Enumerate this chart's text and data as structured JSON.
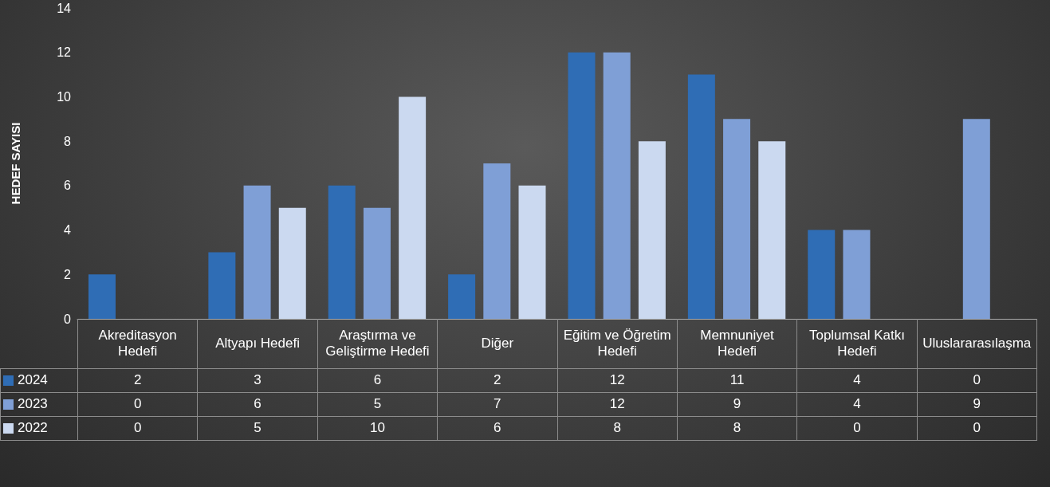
{
  "chart_data": {
    "type": "bar",
    "ylabel": "HEDEF SAYISI",
    "categories": [
      "Akreditasyon Hedefi",
      "Altyapı Hedefi",
      "Araştırma ve Geliştirme Hedefi",
      "Diğer",
      "Eğitim ve Öğretim Hedefi",
      "Memnuniyet Hedefi",
      "Toplumsal Katkı Hedefi",
      "Uluslararasılaşma"
    ],
    "series": [
      {
        "name": "2024",
        "color": "#2f6db5",
        "values": [
          2,
          3,
          6,
          2,
          12,
          11,
          4,
          0
        ]
      },
      {
        "name": "2023",
        "color": "#7f9fd6",
        "values": [
          0,
          6,
          5,
          7,
          12,
          9,
          4,
          9
        ]
      },
      {
        "name": "2022",
        "color": "#cbd9f0",
        "values": [
          0,
          5,
          10,
          6,
          8,
          8,
          0,
          0
        ]
      }
    ],
    "ylim": [
      0,
      14
    ],
    "yticks": [
      0,
      2,
      4,
      6,
      8,
      10,
      12,
      14
    ],
    "grid": false,
    "legend": "bottom",
    "data_labels": true
  }
}
